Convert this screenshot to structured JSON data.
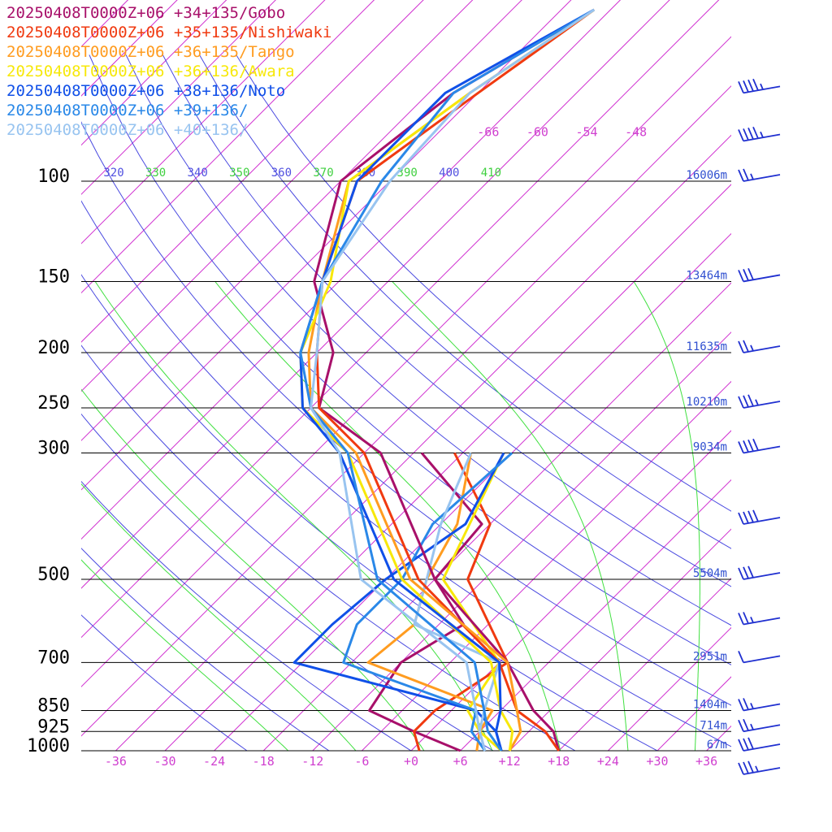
{
  "chart_data": {
    "type": "line",
    "pressure_levels": [
      {
        "p": 100,
        "label": "100",
        "height": "16006m"
      },
      {
        "p": 150,
        "label": "150",
        "height": "13464m"
      },
      {
        "p": 200,
        "label": "200",
        "height": "11635m"
      },
      {
        "p": 250,
        "label": "250",
        "height": "10210m"
      },
      {
        "p": 300,
        "label": "300",
        "height": "9034m"
      },
      {
        "p": 500,
        "label": "500",
        "height": "5504m"
      },
      {
        "p": 700,
        "label": "700",
        "height": "2951m"
      },
      {
        "p": 850,
        "label": "850",
        "height": "1404m"
      },
      {
        "p": 925,
        "label": "925",
        "height": "714m"
      },
      {
        "p": 1000,
        "label": "1000",
        "height": "67m"
      }
    ],
    "x_ticks": [
      "-36",
      "-30",
      "-24",
      "-18",
      "-12",
      "-6",
      "+0",
      "+6",
      "+12",
      "+18",
      "+24",
      "+30",
      "+36"
    ],
    "x_tick_values": [
      -36,
      -30,
      -24,
      -18,
      -12,
      -6,
      0,
      6,
      12,
      18,
      24,
      30,
      36
    ],
    "upper_temp_labels": [
      {
        "label": "-66",
        "t": -66,
        "p": 82
      },
      {
        "label": "-60",
        "t": -60,
        "p": 82
      },
      {
        "label": "-54",
        "t": -54,
        "p": 82
      },
      {
        "label": "-48",
        "t": -48,
        "p": 82
      }
    ],
    "theta_labels": [
      {
        "label": "320",
        "color": "#5050e0"
      },
      {
        "label": "330",
        "color": "#40d040"
      },
      {
        "label": "340",
        "color": "#5050e0"
      },
      {
        "label": "350",
        "color": "#40d040"
      },
      {
        "label": "360",
        "color": "#5050e0"
      },
      {
        "label": "370",
        "color": "#40d040"
      },
      {
        "label": "380",
        "color": "#5050e0"
      },
      {
        "label": "390",
        "color": "#40d040"
      },
      {
        "label": "400",
        "color": "#5050e0"
      },
      {
        "label": "410",
        "color": "#40d040"
      }
    ],
    "isotherm_range": [
      -150,
      40
    ],
    "isotherm_step": 6,
    "dry_adiabats": [
      -20,
      -10,
      0,
      10,
      20,
      30,
      40,
      50,
      60,
      70,
      80,
      90,
      100
    ],
    "moist_adiabats": [
      -12,
      -4,
      4,
      12,
      20,
      28,
      36
    ],
    "series": [
      {
        "name": "20250408T0000Z+06 +34+135/Gobo",
        "color": "#a8106a",
        "temperature": [
          [
            1000,
            18
          ],
          [
            925,
            15
          ],
          [
            850,
            10
          ],
          [
            700,
            1
          ],
          [
            500,
            -18
          ],
          [
            300,
            -40
          ],
          [
            250,
            -53
          ],
          [
            200,
            -58
          ],
          [
            150,
            -69
          ],
          [
            100,
            -78
          ],
          [
            70,
            -75
          ],
          [
            50,
            -68
          ]
        ],
        "dewpoint": [
          [
            1000,
            6
          ],
          [
            925,
            -2
          ],
          [
            850,
            -10
          ],
          [
            700,
            -12
          ],
          [
            600,
            -9
          ],
          [
            500,
            -18
          ],
          [
            400,
            -19
          ],
          [
            300,
            -35
          ]
        ]
      },
      {
        "name": "20250408T0000Z+06 +35+135/Nishiwaki",
        "color": "#f03a10",
        "temperature": [
          [
            1000,
            18
          ],
          [
            925,
            14
          ],
          [
            850,
            8
          ],
          [
            700,
            0
          ],
          [
            500,
            -20
          ],
          [
            300,
            -42
          ],
          [
            250,
            -53
          ],
          [
            200,
            -60
          ],
          [
            150,
            -68
          ],
          [
            100,
            -76
          ],
          [
            70,
            -72
          ],
          [
            50,
            -68
          ]
        ],
        "dewpoint": [
          [
            1000,
            1
          ],
          [
            925,
            -2
          ],
          [
            850,
            -2
          ],
          [
            700,
            1
          ],
          [
            500,
            -14
          ],
          [
            400,
            -18
          ],
          [
            300,
            -31
          ]
        ]
      },
      {
        "name": "20250408T0000Z+06 +36+135/Tango",
        "color": "#ff9c20",
        "temperature": [
          [
            1000,
            12
          ],
          [
            925,
            11
          ],
          [
            850,
            8
          ],
          [
            700,
            1
          ],
          [
            500,
            -21
          ],
          [
            300,
            -43
          ],
          [
            250,
            -54
          ],
          [
            200,
            -61
          ],
          [
            150,
            -68
          ],
          [
            100,
            -77
          ],
          [
            70,
            -73
          ],
          [
            50,
            -68
          ]
        ],
        "dewpoint": [
          [
            1000,
            8
          ],
          [
            925,
            6
          ],
          [
            850,
            5
          ],
          [
            700,
            -16
          ],
          [
            600,
            -15
          ],
          [
            500,
            -19
          ],
          [
            400,
            -22
          ],
          [
            300,
            -29
          ]
        ]
      },
      {
        "name": "20250408T0000Z+06 +36+136/Awara",
        "color": "#f7e80a",
        "temperature": [
          [
            1000,
            12
          ],
          [
            925,
            10
          ],
          [
            850,
            6
          ],
          [
            700,
            -1
          ],
          [
            500,
            -22
          ],
          [
            300,
            -44
          ],
          [
            250,
            -55
          ],
          [
            200,
            -62
          ],
          [
            150,
            -67
          ],
          [
            100,
            -77
          ],
          [
            70,
            -73
          ],
          [
            50,
            -68
          ]
        ],
        "dewpoint": [
          [
            1000,
            11
          ],
          [
            925,
            6
          ],
          [
            850,
            2
          ],
          [
            700,
            0
          ],
          [
            500,
            -17
          ],
          [
            300,
            -25
          ]
        ]
      },
      {
        "name": "20250408T0000Z+06 +38+136/Noto",
        "color": "#1050e8",
        "temperature": [
          [
            1000,
            11
          ],
          [
            925,
            8
          ],
          [
            850,
            6
          ],
          [
            700,
            0
          ],
          [
            500,
            -23
          ],
          [
            300,
            -45
          ],
          [
            250,
            -55
          ],
          [
            200,
            -62
          ],
          [
            150,
            -68
          ],
          [
            100,
            -76
          ],
          [
            70,
            -76
          ],
          [
            50,
            -68
          ]
        ],
        "dewpoint": [
          [
            1000,
            11
          ],
          [
            925,
            8
          ],
          [
            850,
            3
          ],
          [
            700,
            -25
          ],
          [
            600,
            -25
          ],
          [
            500,
            -24
          ],
          [
            400,
            -21
          ],
          [
            300,
            -25
          ]
        ]
      },
      {
        "name": "20250408T0000Z+06 +39+136/",
        "color": "#2a88e8",
        "temperature": [
          [
            1000,
            11
          ],
          [
            925,
            7
          ],
          [
            850,
            4
          ],
          [
            700,
            -3
          ],
          [
            500,
            -25
          ],
          [
            300,
            -44
          ],
          [
            250,
            -54
          ],
          [
            200,
            -62
          ],
          [
            150,
            -68
          ],
          [
            100,
            -73
          ],
          [
            70,
            -75
          ],
          [
            50,
            -68
          ]
        ],
        "dewpoint": [
          [
            1000,
            9
          ],
          [
            925,
            5
          ],
          [
            850,
            3
          ],
          [
            700,
            -19
          ],
          [
            600,
            -22
          ],
          [
            500,
            -22
          ],
          [
            400,
            -25
          ],
          [
            300,
            -24
          ]
        ]
      },
      {
        "name": "20250408T0000Z+06 +40+136/",
        "color": "#98c4f0",
        "temperature": [
          [
            1000,
            9
          ],
          [
            925,
            6
          ],
          [
            850,
            3
          ],
          [
            700,
            -4
          ],
          [
            500,
            -27
          ],
          [
            300,
            -45
          ],
          [
            250,
            -54
          ],
          [
            200,
            -60
          ],
          [
            150,
            -68
          ],
          [
            100,
            -72
          ],
          [
            70,
            -73
          ],
          [
            50,
            -68
          ]
        ],
        "dewpoint": [
          [
            1000,
            9
          ],
          [
            925,
            6
          ],
          [
            850,
            4
          ],
          [
            700,
            0
          ],
          [
            600,
            -15
          ],
          [
            500,
            -19
          ],
          [
            400,
            -24
          ],
          [
            300,
            -29
          ]
        ]
      }
    ],
    "wind_barbs": [
      {
        "p": 70,
        "speed_kt": 45
      },
      {
        "p": 85,
        "speed_kt": 45
      },
      {
        "p": 100,
        "speed_kt": 25
      },
      {
        "p": 150,
        "speed_kt": 30
      },
      {
        "p": 200,
        "speed_kt": 25
      },
      {
        "p": 250,
        "speed_kt": 35
      },
      {
        "p": 300,
        "speed_kt": 40
      },
      {
        "p": 400,
        "speed_kt": 40
      },
      {
        "p": 500,
        "speed_kt": 30
      },
      {
        "p": 600,
        "speed_kt": 25
      },
      {
        "p": 700,
        "speed_kt": 10
      },
      {
        "p": 850,
        "speed_kt": 25
      },
      {
        "p": 925,
        "speed_kt": 25
      },
      {
        "p": 1000,
        "speed_kt": 30
      },
      {
        "p": 1100,
        "speed_kt": 35
      }
    ],
    "colors": {
      "isotherm": "#d030d0",
      "dry_adiabat": "#4a4ae0",
      "moist_adiabat": "#40e040",
      "isobar": "#000000",
      "height_label": "#3050d0",
      "barb": "#2030d0",
      "x_tick": "#d040d0",
      "pressure_label": "#000000"
    }
  }
}
